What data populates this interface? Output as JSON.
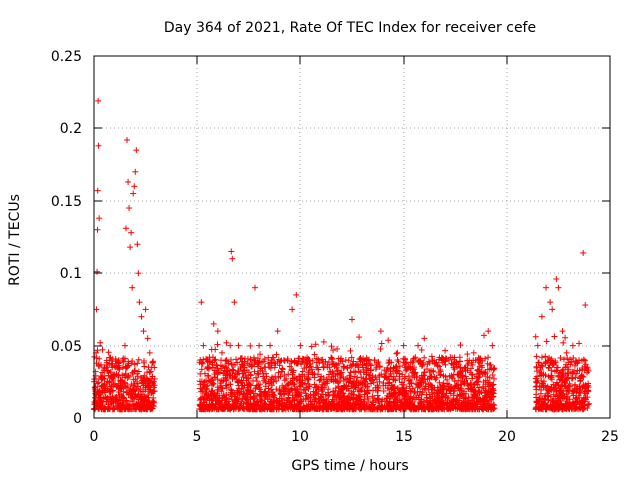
{
  "chart_data": {
    "type": "scatter",
    "title": "Day 364 of 2021, Rate Of TEC Index for receiver cefe",
    "xlabel": "GPS time / hours",
    "ylabel": "ROTI / TECUs",
    "xlim": [
      0,
      25
    ],
    "ylim": [
      0,
      0.25
    ],
    "grid": true,
    "marker": "+",
    "marker_color": "#ff0000",
    "x_ticks": [
      "0",
      "5",
      "10",
      "15",
      "20",
      "25"
    ],
    "y_ticks": [
      "0",
      "0.05",
      "0.1",
      "0.15",
      "0.2",
      "0.25"
    ],
    "x_tick_values": [
      0,
      5,
      10,
      15,
      20,
      25
    ],
    "y_tick_values": [
      0,
      0.05,
      0.1,
      0.15,
      0.2,
      0.25
    ],
    "series": [
      {
        "name": "ROTI",
        "points": [
          [
            0.05,
            0.014
          ],
          [
            0.08,
            0.032
          ],
          [
            0.1,
            0.045
          ],
          [
            0.12,
            0.075
          ],
          [
            0.15,
            0.101
          ],
          [
            0.17,
            0.13
          ],
          [
            0.18,
            0.157
          ],
          [
            0.2,
            0.219
          ],
          [
            0.22,
            0.188
          ],
          [
            0.25,
            0.138
          ],
          [
            0.3,
            0.052
          ],
          [
            0.35,
            0.028
          ],
          [
            0.45,
            0.022
          ],
          [
            0.6,
            0.035
          ],
          [
            0.8,
            0.018
          ],
          [
            1.0,
            0.03
          ],
          [
            1.1,
            0.022
          ],
          [
            1.2,
            0.04
          ],
          [
            1.3,
            0.025
          ],
          [
            1.4,
            0.035
          ],
          [
            1.5,
            0.05
          ],
          [
            1.55,
            0.131
          ],
          [
            1.6,
            0.192
          ],
          [
            1.65,
            0.163
          ],
          [
            1.7,
            0.145
          ],
          [
            1.75,
            0.118
          ],
          [
            1.8,
            0.128
          ],
          [
            1.85,
            0.09
          ],
          [
            1.9,
            0.155
          ],
          [
            1.95,
            0.16
          ],
          [
            2.0,
            0.17
          ],
          [
            2.05,
            0.185
          ],
          [
            2.1,
            0.12
          ],
          [
            2.15,
            0.1
          ],
          [
            2.2,
            0.08
          ],
          [
            2.3,
            0.07
          ],
          [
            2.4,
            0.06
          ],
          [
            2.5,
            0.075
          ],
          [
            2.6,
            0.055
          ],
          [
            2.7,
            0.045
          ],
          [
            2.8,
            0.035
          ],
          [
            2.9,
            0.025
          ],
          [
            5.2,
            0.08
          ],
          [
            5.3,
            0.05
          ],
          [
            5.5,
            0.04
          ],
          [
            5.8,
            0.065
          ],
          [
            6.0,
            0.06
          ],
          [
            6.2,
            0.045
          ],
          [
            6.4,
            0.035
          ],
          [
            6.6,
            0.05
          ],
          [
            6.65,
            0.115
          ],
          [
            6.7,
            0.11
          ],
          [
            6.8,
            0.08
          ],
          [
            7.0,
            0.05
          ],
          [
            7.3,
            0.035
          ],
          [
            7.6,
            0.04
          ],
          [
            7.8,
            0.09
          ],
          [
            8.0,
            0.05
          ],
          [
            8.3,
            0.035
          ],
          [
            8.6,
            0.04
          ],
          [
            8.9,
            0.06
          ],
          [
            9.2,
            0.04
          ],
          [
            9.6,
            0.075
          ],
          [
            9.8,
            0.085
          ],
          [
            10.0,
            0.05
          ],
          [
            10.3,
            0.04
          ],
          [
            10.6,
            0.03
          ],
          [
            11.0,
            0.04
          ],
          [
            11.4,
            0.035
          ],
          [
            11.8,
            0.03
          ],
          [
            12.2,
            0.04
          ],
          [
            12.5,
            0.068
          ],
          [
            12.8,
            0.035
          ],
          [
            13.2,
            0.03
          ],
          [
            13.6,
            0.04
          ],
          [
            13.9,
            0.06
          ],
          [
            14.3,
            0.04
          ],
          [
            14.7,
            0.045
          ],
          [
            15.0,
            0.05
          ],
          [
            15.3,
            0.035
          ],
          [
            15.7,
            0.05
          ],
          [
            16.0,
            0.055
          ],
          [
            16.4,
            0.04
          ],
          [
            16.8,
            0.03
          ],
          [
            17.2,
            0.04
          ],
          [
            17.6,
            0.03
          ],
          [
            18.0,
            0.035
          ],
          [
            18.4,
            0.045
          ],
          [
            18.8,
            0.035
          ],
          [
            19.1,
            0.06
          ],
          [
            19.3,
            0.05
          ],
          [
            21.5,
            0.05
          ],
          [
            21.7,
            0.07
          ],
          [
            21.9,
            0.09
          ],
          [
            22.1,
            0.08
          ],
          [
            22.2,
            0.075
          ],
          [
            22.4,
            0.096
          ],
          [
            22.5,
            0.09
          ],
          [
            22.7,
            0.06
          ],
          [
            22.9,
            0.045
          ],
          [
            23.2,
            0.05
          ],
          [
            23.5,
            0.04
          ],
          [
            23.7,
            0.114
          ],
          [
            23.8,
            0.078
          ],
          [
            23.9,
            0.035
          ]
        ]
      }
    ]
  },
  "cloud_segments": [
    {
      "x_start": 0.0,
      "x_end": 2.95
    },
    {
      "x_start": 5.1,
      "x_end": 19.4
    },
    {
      "x_start": 21.4,
      "x_end": 24.0
    }
  ]
}
